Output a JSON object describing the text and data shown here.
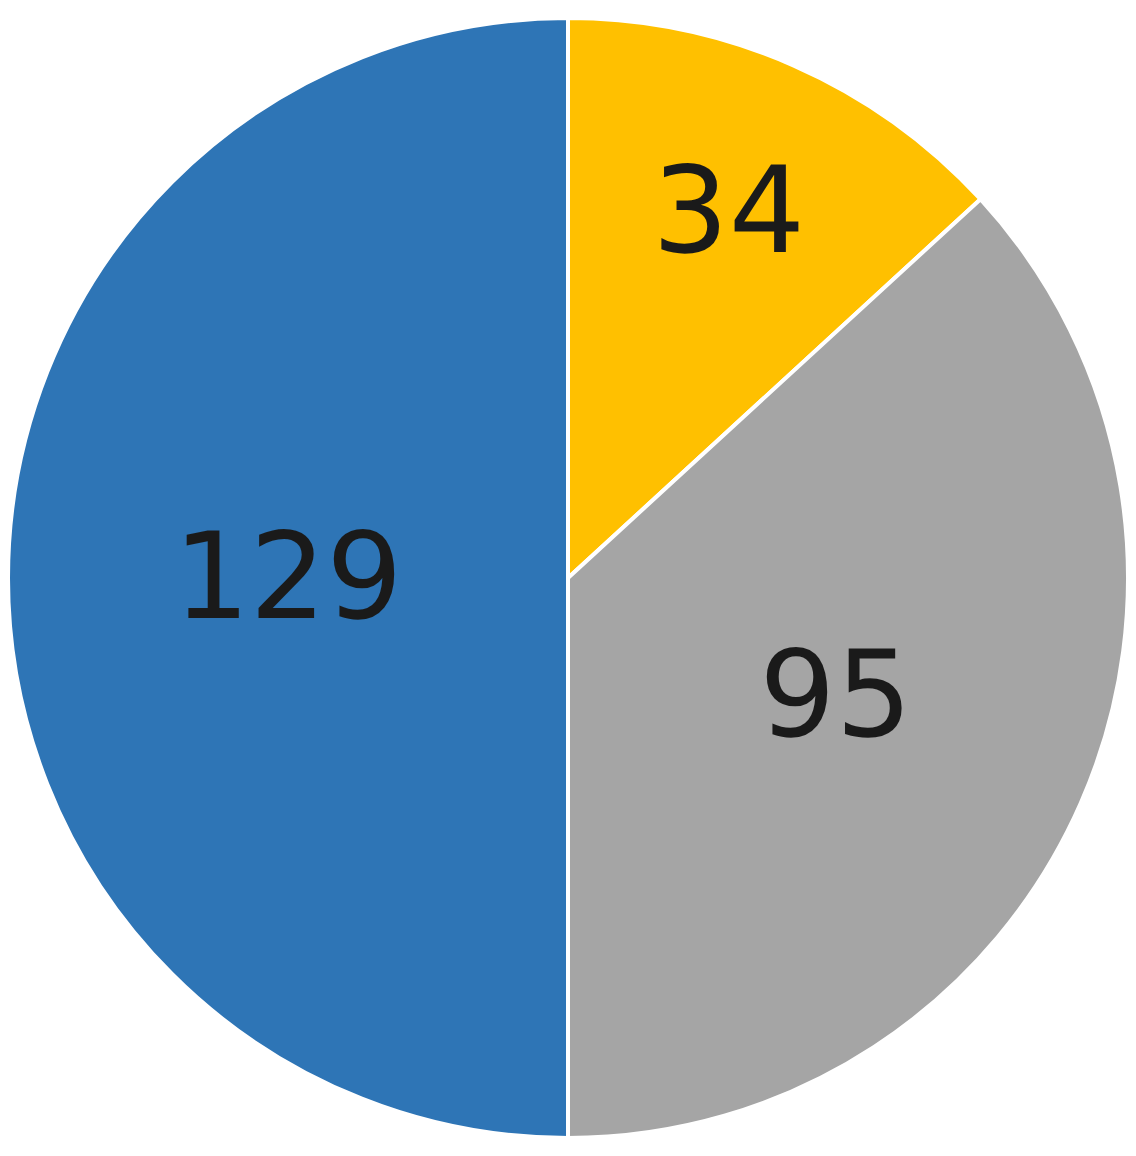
{
  "chart_data": {
    "type": "pie",
    "categories": [
      null,
      null,
      null
    ],
    "values": [
      34,
      95,
      129
    ],
    "colors": [
      "#ffc000",
      "#a5a5a5",
      "#2e75b6"
    ],
    "data_labels": true,
    "legend": false
  }
}
